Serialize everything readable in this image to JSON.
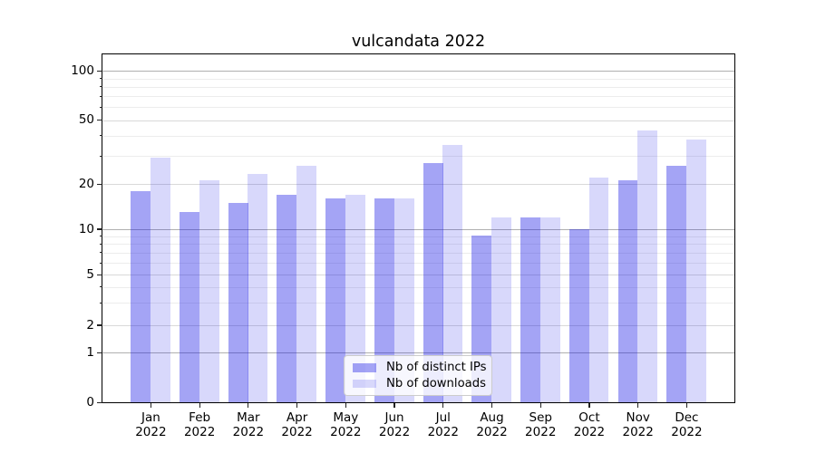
{
  "title": "vulcandata 2022",
  "chart_data": {
    "type": "bar",
    "title": "vulcandata 2022",
    "categories": [
      "Jan",
      "Feb",
      "Mar",
      "Apr",
      "May",
      "Jun",
      "Jul",
      "Aug",
      "Sep",
      "Oct",
      "Nov",
      "Dec"
    ],
    "category_year_line": "2022",
    "series": [
      {
        "name": "Nb of distinct IPs",
        "color": "rgba(15,15,230,0.38)",
        "approx_hex_on_white": "#a4a4f5",
        "values": [
          18,
          13,
          15,
          17,
          16,
          16,
          27,
          9,
          12,
          10,
          21,
          26
        ]
      },
      {
        "name": "Nb of downloads",
        "color": "rgba(15,15,230,0.16)",
        "approx_hex_on_white": "#d9d9fb",
        "values": [
          29,
          21,
          23,
          26,
          17,
          16,
          35,
          12,
          12,
          22,
          43,
          38
        ]
      }
    ],
    "xlabel": "",
    "ylabel": "",
    "yscale": "symlog",
    "ylim": [
      0,
      126
    ],
    "yticks": [
      100,
      50,
      20,
      10,
      5,
      2,
      1,
      0
    ],
    "minor_gridline_values": [
      3,
      4,
      6,
      7,
      8,
      9,
      30,
      40,
      60,
      70,
      80,
      90
    ],
    "emphasized_gridline_values": [
      1,
      10,
      100
    ],
    "grid": true,
    "legend_position": "lower center",
    "colors": {
      "grid_minor": "#ececec",
      "grid_major": "#d9d9d9",
      "grid_emphasis": "#b0b0b0",
      "axes_frame": "#000000",
      "legend_border": "#cccccc"
    }
  }
}
